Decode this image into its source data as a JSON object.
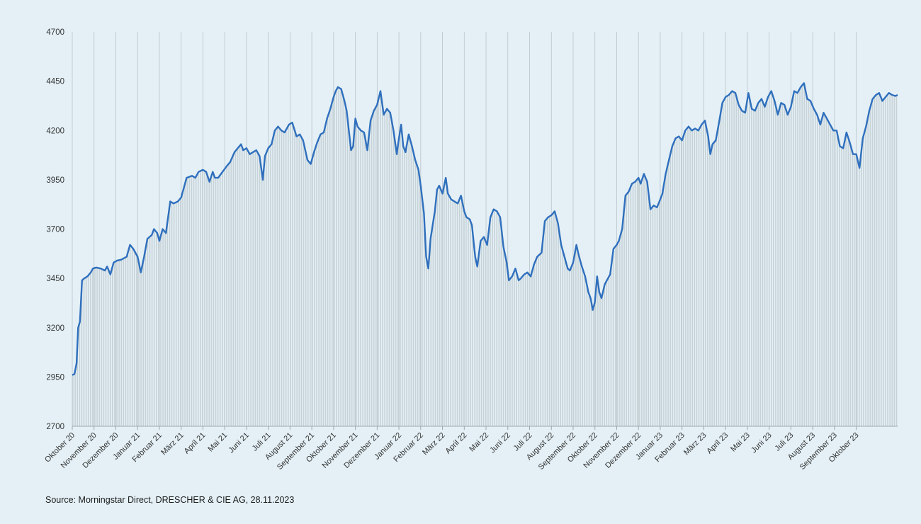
{
  "source": "Source: Morningstar Direct, DRESCHER & CIE AG, 28.11.2023",
  "colors": {
    "background": "#e4f0f6",
    "line": "#2f6fbd",
    "fill": "#c6d2d6",
    "grid": "#b8c4c9"
  },
  "chart_data": {
    "type": "line",
    "title": "",
    "xlabel": "",
    "ylabel": "",
    "ylim": [
      2700,
      4700
    ],
    "yticks": [
      2700,
      2950,
      3200,
      3450,
      3700,
      3950,
      4200,
      4450,
      4700
    ],
    "grid": "vertical at month ticks",
    "legend": "none",
    "fill_under_line": true,
    "x_tick_labels": [
      "Oktober 20",
      "November 20",
      "Dezember 20",
      "Januar 21",
      "Februar 21",
      "März 21",
      "April 21",
      "Mai 21",
      "Juni 21",
      "Juli 21",
      "August 21",
      "September 21",
      "Oktober 21",
      "November 21",
      "Dezember 21",
      "Januar 22",
      "Februar 22",
      "März 22",
      "April 22",
      "Mai 22",
      "Juni 22",
      "Juli 22",
      "August 22",
      "September 22",
      "Oktober 22",
      "November 22",
      "Dezember 22",
      "Januar 23",
      "Februar 23",
      "März 23",
      "April 23",
      "Mai 23",
      "Juni 23",
      "Juli 23",
      "August 23",
      "September 23",
      "Oktober 23"
    ],
    "x_end_month_index": 37.9,
    "series": [
      {
        "points": [
          [
            0.0,
            2960
          ],
          [
            0.1,
            2965
          ],
          [
            0.2,
            3020
          ],
          [
            0.27,
            3200
          ],
          [
            0.35,
            3230
          ],
          [
            0.45,
            3440
          ],
          [
            0.55,
            3450
          ],
          [
            0.7,
            3460
          ],
          [
            0.85,
            3480
          ],
          [
            0.95,
            3500
          ],
          [
            1.1,
            3505
          ],
          [
            1.3,
            3500
          ],
          [
            1.5,
            3490
          ],
          [
            1.6,
            3510
          ],
          [
            1.75,
            3470
          ],
          [
            1.9,
            3530
          ],
          [
            2.05,
            3540
          ],
          [
            2.25,
            3545
          ],
          [
            2.5,
            3560
          ],
          [
            2.65,
            3620
          ],
          [
            2.8,
            3600
          ],
          [
            3.0,
            3560
          ],
          [
            3.15,
            3480
          ],
          [
            3.3,
            3560
          ],
          [
            3.45,
            3650
          ],
          [
            3.65,
            3670
          ],
          [
            3.75,
            3700
          ],
          [
            3.9,
            3680
          ],
          [
            4.0,
            3640
          ],
          [
            4.15,
            3700
          ],
          [
            4.3,
            3680
          ],
          [
            4.5,
            3840
          ],
          [
            4.65,
            3830
          ],
          [
            4.85,
            3840
          ],
          [
            5.0,
            3860
          ],
          [
            5.1,
            3900
          ],
          [
            5.25,
            3960
          ],
          [
            5.5,
            3970
          ],
          [
            5.65,
            3960
          ],
          [
            5.8,
            3990
          ],
          [
            6.0,
            4000
          ],
          [
            6.15,
            3990
          ],
          [
            6.3,
            3940
          ],
          [
            6.45,
            3990
          ],
          [
            6.55,
            3960
          ],
          [
            6.7,
            3960
          ],
          [
            6.9,
            3990
          ],
          [
            7.1,
            4020
          ],
          [
            7.25,
            4040
          ],
          [
            7.45,
            4090
          ],
          [
            7.6,
            4110
          ],
          [
            7.75,
            4130
          ],
          [
            7.85,
            4100
          ],
          [
            8.0,
            4110
          ],
          [
            8.15,
            4080
          ],
          [
            8.3,
            4090
          ],
          [
            8.45,
            4100
          ],
          [
            8.6,
            4070
          ],
          [
            8.75,
            3950
          ],
          [
            8.85,
            4070
          ],
          [
            9.0,
            4110
          ],
          [
            9.15,
            4130
          ],
          [
            9.3,
            4200
          ],
          [
            9.45,
            4220
          ],
          [
            9.6,
            4200
          ],
          [
            9.75,
            4190
          ],
          [
            9.95,
            4230
          ],
          [
            10.1,
            4240
          ],
          [
            10.3,
            4170
          ],
          [
            10.45,
            4180
          ],
          [
            10.6,
            4150
          ],
          [
            10.8,
            4050
          ],
          [
            10.95,
            4030
          ],
          [
            11.1,
            4090
          ],
          [
            11.25,
            4140
          ],
          [
            11.4,
            4180
          ],
          [
            11.55,
            4190
          ],
          [
            11.7,
            4260
          ],
          [
            11.85,
            4310
          ],
          [
            12.0,
            4370
          ],
          [
            12.1,
            4400
          ],
          [
            12.2,
            4420
          ],
          [
            12.35,
            4410
          ],
          [
            12.5,
            4350
          ],
          [
            12.6,
            4300
          ],
          [
            12.7,
            4200
          ],
          [
            12.8,
            4100
          ],
          [
            12.9,
            4120
          ],
          [
            13.0,
            4260
          ],
          [
            13.1,
            4220
          ],
          [
            13.25,
            4200
          ],
          [
            13.4,
            4190
          ],
          [
            13.55,
            4100
          ],
          [
            13.7,
            4250
          ],
          [
            13.85,
            4300
          ],
          [
            14.0,
            4330
          ],
          [
            14.15,
            4400
          ],
          [
            14.3,
            4280
          ],
          [
            14.45,
            4310
          ],
          [
            14.6,
            4290
          ],
          [
            14.75,
            4200
          ],
          [
            14.9,
            4080
          ],
          [
            15.0,
            4160
          ],
          [
            15.1,
            4230
          ],
          [
            15.2,
            4120
          ],
          [
            15.3,
            4090
          ],
          [
            15.45,
            4180
          ],
          [
            15.6,
            4120
          ],
          [
            15.75,
            4050
          ],
          [
            15.9,
            4000
          ],
          [
            16.0,
            3920
          ],
          [
            16.15,
            3780
          ],
          [
            16.25,
            3560
          ],
          [
            16.35,
            3500
          ],
          [
            16.45,
            3650
          ],
          [
            16.55,
            3720
          ],
          [
            16.65,
            3790
          ],
          [
            16.75,
            3900
          ],
          [
            16.85,
            3920
          ],
          [
            17.0,
            3880
          ],
          [
            17.15,
            3960
          ],
          [
            17.25,
            3880
          ],
          [
            17.4,
            3850
          ],
          [
            17.55,
            3840
          ],
          [
            17.7,
            3830
          ],
          [
            17.85,
            3870
          ],
          [
            18.0,
            3790
          ],
          [
            18.1,
            3760
          ],
          [
            18.25,
            3750
          ],
          [
            18.35,
            3720
          ],
          [
            18.5,
            3560
          ],
          [
            18.6,
            3510
          ],
          [
            18.75,
            3640
          ],
          [
            18.9,
            3660
          ],
          [
            19.05,
            3620
          ],
          [
            19.2,
            3760
          ],
          [
            19.35,
            3800
          ],
          [
            19.5,
            3790
          ],
          [
            19.65,
            3760
          ],
          [
            19.8,
            3610
          ],
          [
            19.95,
            3530
          ],
          [
            20.05,
            3440
          ],
          [
            20.2,
            3460
          ],
          [
            20.35,
            3500
          ],
          [
            20.5,
            3440
          ],
          [
            20.6,
            3450
          ],
          [
            20.75,
            3470
          ],
          [
            20.9,
            3480
          ],
          [
            21.05,
            3460
          ],
          [
            21.2,
            3520
          ],
          [
            21.35,
            3560
          ],
          [
            21.55,
            3580
          ],
          [
            21.7,
            3740
          ],
          [
            21.85,
            3760
          ],
          [
            22.0,
            3770
          ],
          [
            22.15,
            3790
          ],
          [
            22.3,
            3730
          ],
          [
            22.45,
            3620
          ],
          [
            22.6,
            3560
          ],
          [
            22.75,
            3500
          ],
          [
            22.85,
            3490
          ],
          [
            23.0,
            3530
          ],
          [
            23.15,
            3620
          ],
          [
            23.25,
            3570
          ],
          [
            23.4,
            3510
          ],
          [
            23.55,
            3460
          ],
          [
            23.7,
            3380
          ],
          [
            23.8,
            3350
          ],
          [
            23.9,
            3290
          ],
          [
            24.0,
            3330
          ],
          [
            24.1,
            3460
          ],
          [
            24.2,
            3380
          ],
          [
            24.3,
            3350
          ],
          [
            24.45,
            3420
          ],
          [
            24.55,
            3440
          ],
          [
            24.7,
            3470
          ],
          [
            24.85,
            3600
          ],
          [
            25.0,
            3620
          ],
          [
            25.1,
            3640
          ],
          [
            25.25,
            3700
          ],
          [
            25.4,
            3870
          ],
          [
            25.55,
            3890
          ],
          [
            25.7,
            3930
          ],
          [
            25.85,
            3940
          ],
          [
            26.0,
            3960
          ],
          [
            26.1,
            3930
          ],
          [
            26.25,
            3980
          ],
          [
            26.4,
            3940
          ],
          [
            26.55,
            3800
          ],
          [
            26.7,
            3820
          ],
          [
            26.85,
            3810
          ],
          [
            27.0,
            3850
          ],
          [
            27.1,
            3880
          ],
          [
            27.25,
            3980
          ],
          [
            27.4,
            4050
          ],
          [
            27.55,
            4120
          ],
          [
            27.7,
            4160
          ],
          [
            27.85,
            4170
          ],
          [
            28.0,
            4150
          ],
          [
            28.15,
            4200
          ],
          [
            28.3,
            4220
          ],
          [
            28.45,
            4200
          ],
          [
            28.6,
            4210
          ],
          [
            28.75,
            4200
          ],
          [
            28.9,
            4230
          ],
          [
            29.05,
            4250
          ],
          [
            29.2,
            4170
          ],
          [
            29.3,
            4080
          ],
          [
            29.4,
            4130
          ],
          [
            29.55,
            4150
          ],
          [
            29.7,
            4240
          ],
          [
            29.85,
            4340
          ],
          [
            30.0,
            4370
          ],
          [
            30.15,
            4380
          ],
          [
            30.3,
            4400
          ],
          [
            30.45,
            4390
          ],
          [
            30.6,
            4330
          ],
          [
            30.75,
            4300
          ],
          [
            30.9,
            4290
          ],
          [
            31.05,
            4390
          ],
          [
            31.2,
            4310
          ],
          [
            31.35,
            4300
          ],
          [
            31.5,
            4340
          ],
          [
            31.65,
            4360
          ],
          [
            31.8,
            4320
          ],
          [
            31.95,
            4370
          ],
          [
            32.1,
            4400
          ],
          [
            32.25,
            4350
          ],
          [
            32.4,
            4280
          ],
          [
            32.55,
            4340
          ],
          [
            32.7,
            4330
          ],
          [
            32.85,
            4280
          ],
          [
            33.0,
            4320
          ],
          [
            33.15,
            4400
          ],
          [
            33.3,
            4390
          ],
          [
            33.45,
            4420
          ],
          [
            33.6,
            4440
          ],
          [
            33.75,
            4360
          ],
          [
            33.9,
            4350
          ],
          [
            34.05,
            4310
          ],
          [
            34.2,
            4280
          ],
          [
            34.35,
            4230
          ],
          [
            34.5,
            4290
          ],
          [
            34.65,
            4260
          ],
          [
            34.8,
            4230
          ],
          [
            34.95,
            4200
          ],
          [
            35.1,
            4200
          ],
          [
            35.25,
            4120
          ],
          [
            35.4,
            4110
          ],
          [
            35.55,
            4190
          ],
          [
            35.7,
            4140
          ],
          [
            35.85,
            4080
          ],
          [
            36.0,
            4080
          ],
          [
            36.15,
            4010
          ],
          [
            36.3,
            4160
          ],
          [
            36.45,
            4220
          ],
          [
            36.6,
            4300
          ],
          [
            36.75,
            4360
          ],
          [
            36.9,
            4380
          ],
          [
            37.05,
            4390
          ],
          [
            37.2,
            4350
          ],
          [
            37.35,
            4370
          ],
          [
            37.5,
            4390
          ],
          [
            37.65,
            4380
          ],
          [
            37.8,
            4375
          ],
          [
            37.9,
            4380
          ]
        ]
      }
    ]
  }
}
